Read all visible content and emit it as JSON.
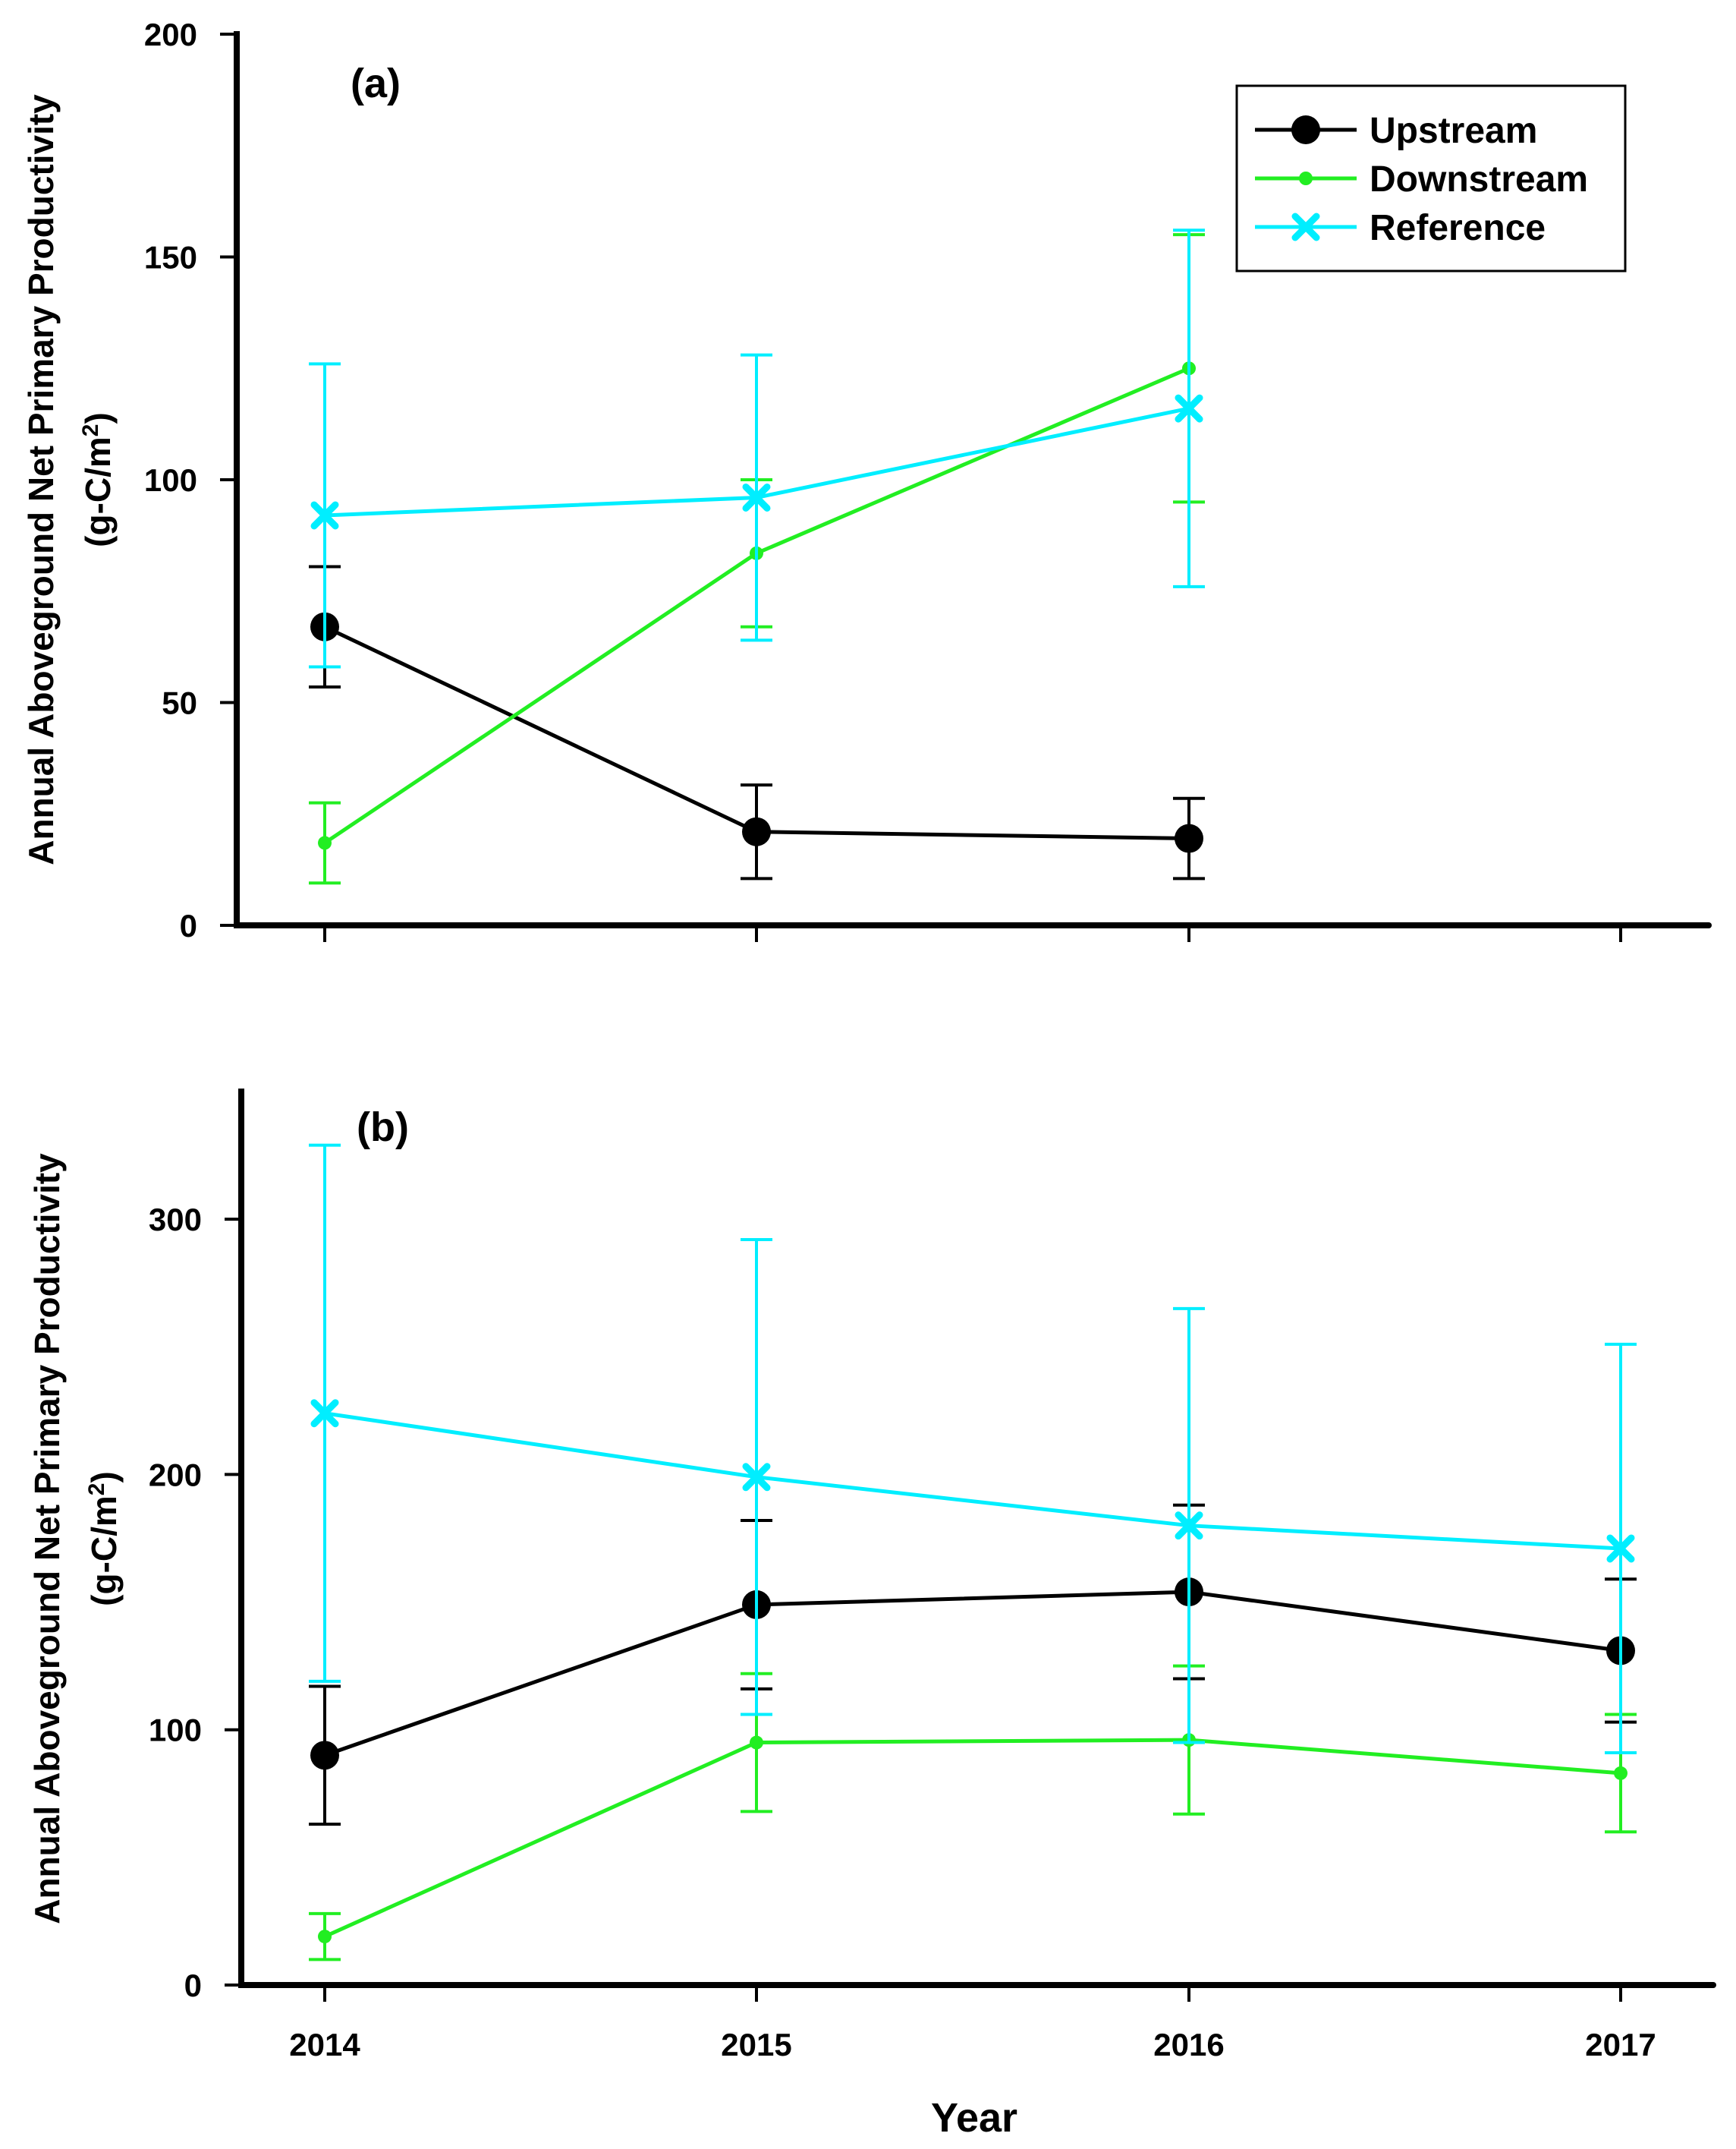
{
  "chart_data": [
    {
      "panel": "(a)",
      "type": "line",
      "x": [
        2014,
        2015,
        2016
      ],
      "xticks": [
        "2014",
        "2015",
        "2016",
        "2017"
      ],
      "ylabel_line1": "Annual Aboveground Net Primary Productivity",
      "ylabel_line2_prefix": "(g-C/m",
      "ylabel_sup": "2",
      "ylabel_line2_suffix": ")",
      "ylim": [
        0,
        200
      ],
      "yticks": [
        "0",
        "50",
        "100",
        "150",
        "200"
      ],
      "series": [
        {
          "name": "Upstream",
          "values": [
            67,
            21,
            19.5
          ],
          "errors": [
            13.5,
            10.5,
            9
          ],
          "color": "#000000",
          "marker": "circle"
        },
        {
          "name": "Downstream",
          "values": [
            18.5,
            83.5,
            125
          ],
          "errors": [
            9,
            16.5,
            30
          ],
          "color": "#22ee22",
          "marker": "dot"
        },
        {
          "name": "Reference",
          "values": [
            92,
            96,
            116
          ],
          "errors": [
            34,
            32,
            40
          ],
          "color": "#00eeff",
          "marker": "x"
        }
      ],
      "legend": [
        "Upstream",
        "Downstream",
        "Reference"
      ],
      "legend_position": "top-right"
    },
    {
      "panel": "(b)",
      "type": "line",
      "x": [
        2014,
        2015,
        2016,
        2017
      ],
      "xticks": [
        "2014",
        "2015",
        "2016",
        "2017"
      ],
      "ylabel_line1": "Annual Aboveground Net Primary Productivity",
      "ylabel_line2_prefix": "(g-C/m",
      "ylabel_sup": "2",
      "ylabel_line2_suffix": ")",
      "ylim": [
        0,
        350
      ],
      "yticks": [
        "0",
        "100",
        "200",
        "300"
      ],
      "series": [
        {
          "name": "Upstream",
          "values": [
            90,
            149,
            154,
            131
          ],
          "errors": [
            27,
            33,
            34,
            28
          ],
          "color": "#000000",
          "marker": "circle"
        },
        {
          "name": "Downstream",
          "values": [
            19,
            95,
            96,
            83
          ],
          "errors": [
            9,
            27,
            29,
            23
          ],
          "color": "#22ee22",
          "marker": "dot"
        },
        {
          "name": "Reference",
          "values": [
            224,
            199,
            180,
            171
          ],
          "errors": [
            105,
            93,
            85,
            80
          ],
          "color": "#00eeff",
          "marker": "x"
        }
      ]
    }
  ],
  "xlabel": "Year"
}
